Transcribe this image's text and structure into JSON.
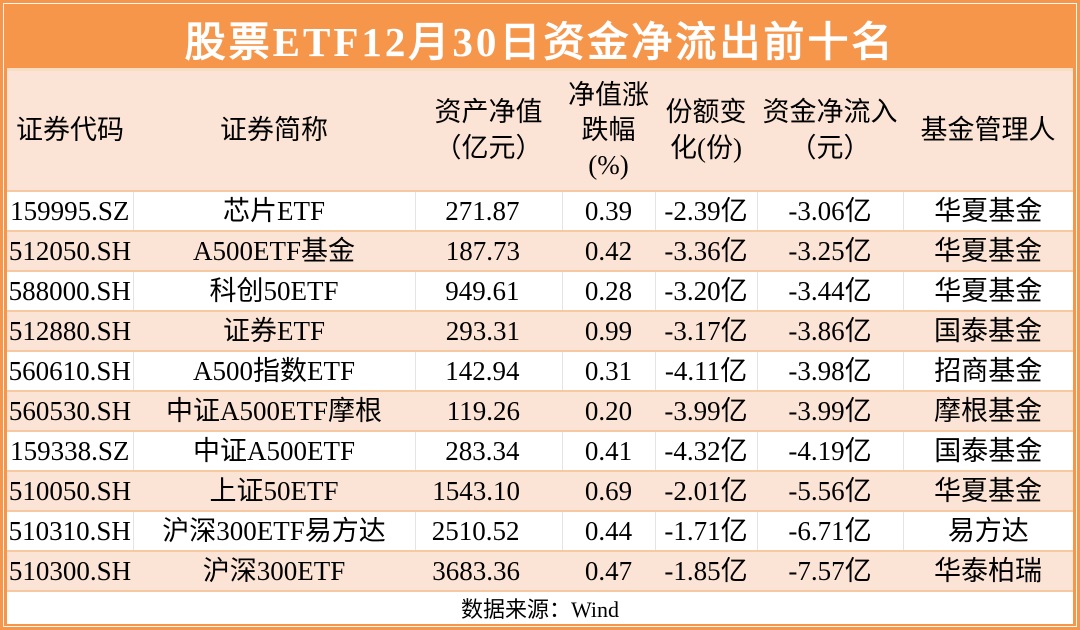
{
  "title": "股票ETF12月30日资金净流出前十名",
  "header": {
    "columns_display": [
      "证券代码",
      "证券简称",
      "资产净值\n（亿元）",
      "净值涨\n跌幅\n(%)",
      "份额变\n化(份)",
      "资金净流入\n（元）",
      "基金管理人"
    ]
  },
  "chart_data": {
    "type": "table",
    "title": "股票ETF12月30日资金净流出前十名",
    "columns": [
      "证券代码",
      "证券简称",
      "资产净值（亿元）",
      "净值涨跌幅(%)",
      "份额变化(份)",
      "资金净流入（元）",
      "基金管理人"
    ],
    "rows": [
      [
        "159995.SZ",
        "芯片ETF",
        "271.87",
        "0.39",
        "-2.39亿",
        "-3.06亿",
        "华夏基金"
      ],
      [
        "512050.SH",
        "A500ETF基金",
        "187.73",
        "0.42",
        "-3.36亿",
        "-3.25亿",
        "华夏基金"
      ],
      [
        "588000.SH",
        "科创50ETF",
        "949.61",
        "0.28",
        "-3.20亿",
        "-3.44亿",
        "华夏基金"
      ],
      [
        "512880.SH",
        "证券ETF",
        "293.31",
        "0.99",
        "-3.17亿",
        "-3.86亿",
        "国泰基金"
      ],
      [
        "560610.SH",
        "A500指数ETF",
        "142.94",
        "0.31",
        "-4.11亿",
        "-3.98亿",
        "招商基金"
      ],
      [
        "560530.SH",
        "中证A500ETF摩根",
        "119.26",
        "0.20",
        "-3.99亿",
        "-3.99亿",
        "摩根基金"
      ],
      [
        "159338.SZ",
        "中证A500ETF",
        "283.34",
        "0.41",
        "-4.32亿",
        "-4.19亿",
        "国泰基金"
      ],
      [
        "510050.SH",
        "上证50ETF",
        "1543.10",
        "0.69",
        "-2.01亿",
        "-5.56亿",
        "华夏基金"
      ],
      [
        "510310.SH",
        "沪深300ETF易方达",
        "2510.52",
        "0.44",
        "-1.71亿",
        "-6.71亿",
        "易方达"
      ],
      [
        "510300.SH",
        "沪深300ETF",
        "3683.36",
        "0.47",
        "-1.85亿",
        "-7.57亿",
        "华泰柏瑞"
      ]
    ],
    "source": "数据来源：Wind"
  },
  "footer": {
    "source_label": "数据来源：Wind"
  },
  "colors": {
    "accent_orange": "#F6964B",
    "peach_fill": "#FBE4D5",
    "row_separator": "#F6C9A2",
    "title_text": "#FFFFFF",
    "body_text": "#000000"
  }
}
